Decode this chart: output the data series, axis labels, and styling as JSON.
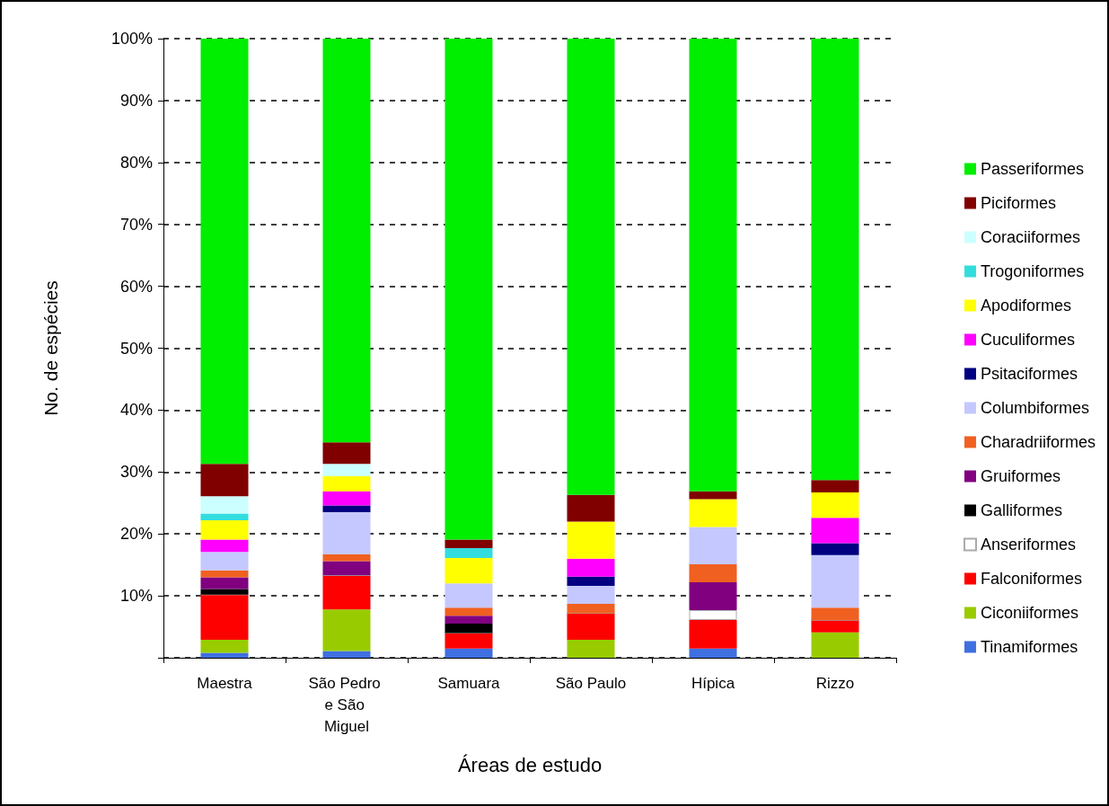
{
  "chart_data": {
    "type": "bar",
    "stacked": true,
    "xlabel": "Áreas de estudo",
    "ylabel": "No. de espécies",
    "categories": [
      "Maestra",
      "São Pedro e São Miguel",
      "Samuara",
      "São Paulo",
      "Hípica",
      "Rizzo"
    ],
    "ylim": [
      0,
      100
    ],
    "yticks": [
      {
        "value": 0,
        "label": null
      },
      {
        "value": 10,
        "label": "10%"
      },
      {
        "value": 20,
        "label": "20%"
      },
      {
        "value": 30,
        "label": "30%"
      },
      {
        "value": 40,
        "label": "40%"
      },
      {
        "value": 50,
        "label": "50%"
      },
      {
        "value": 60,
        "label": "60%"
      },
      {
        "value": 70,
        "label": "70%"
      },
      {
        "value": 80,
        "label": "80%"
      },
      {
        "value": 90,
        "label": "90%"
      },
      {
        "value": 100,
        "label": "100%"
      }
    ],
    "grid": "y",
    "legend": "right",
    "series": [
      {
        "name": "Tinamiformes",
        "color": "#3f6fe0",
        "values": [
          0.8,
          1.1,
          1.5,
          0,
          1.5,
          0
        ]
      },
      {
        "name": "Ciconiiformes",
        "color": "#99cc00",
        "values": [
          2.1,
          6.7,
          0,
          2.9,
          0,
          4.1
        ]
      },
      {
        "name": "Falconiformes",
        "color": "#ff0000",
        "values": [
          7.3,
          5.5,
          2.5,
          4.3,
          4.6,
          2.0
        ]
      },
      {
        "name": "Anseriformes",
        "color": "#ffffff",
        "values": [
          0,
          0,
          0,
          0,
          1.6,
          0
        ]
      },
      {
        "name": "Galliformes",
        "color": "#000000",
        "values": [
          0.9,
          0,
          1.5,
          0,
          0,
          0
        ]
      },
      {
        "name": "Gruiformes",
        "color": "#800080",
        "values": [
          1.9,
          2.3,
          1.3,
          0,
          4.5,
          0
        ]
      },
      {
        "name": "Charadriiformes",
        "color": "#f06020",
        "values": [
          1.1,
          1.1,
          1.3,
          1.5,
          2.9,
          2.0
        ]
      },
      {
        "name": "Columbiformes",
        "color": "#c4c8ff",
        "values": [
          3.0,
          6.8,
          3.9,
          2.9,
          6.0,
          8.5
        ]
      },
      {
        "name": "Psitaciformes",
        "color": "#000080",
        "values": [
          0,
          1.1,
          0,
          1.5,
          0,
          1.9
        ]
      },
      {
        "name": "Cuculiformes",
        "color": "#ff00ff",
        "values": [
          2.0,
          2.3,
          0,
          2.9,
          0,
          4.1
        ]
      },
      {
        "name": "Apodiformes",
        "color": "#ffff00",
        "values": [
          3.1,
          2.4,
          4.1,
          6.0,
          4.5,
          4.1
        ]
      },
      {
        "name": "Trogoniformes",
        "color": "#33dddd",
        "values": [
          1.1,
          0,
          1.6,
          0,
          0,
          0
        ]
      },
      {
        "name": "Coraciiformes",
        "color": "#ccffff",
        "values": [
          2.8,
          2.0,
          0,
          0,
          0,
          0
        ]
      },
      {
        "name": "Piciformes",
        "color": "#800000",
        "values": [
          5.2,
          3.5,
          1.4,
          4.3,
          1.3,
          2.0
        ]
      },
      {
        "name": "Passeriformes",
        "color": "#00ee00",
        "values": [
          68.7,
          65.2,
          80.9,
          73.7,
          73.1,
          71.3
        ]
      }
    ]
  }
}
